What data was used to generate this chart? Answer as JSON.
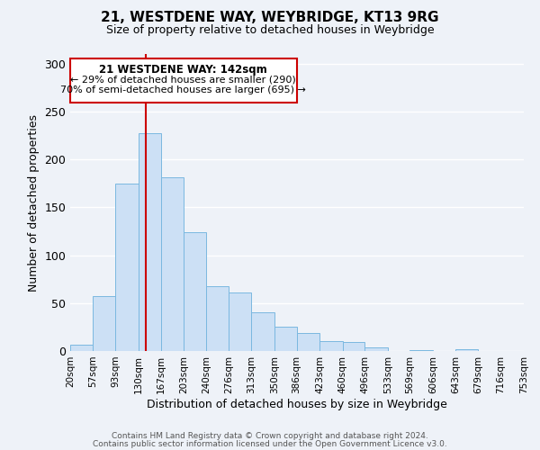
{
  "title": "21, WESTDENE WAY, WEYBRIDGE, KT13 9RG",
  "subtitle": "Size of property relative to detached houses in Weybridge",
  "bar_values": [
    7,
    57,
    175,
    227,
    181,
    124,
    68,
    61,
    40,
    25,
    19,
    10,
    9,
    4,
    0,
    1,
    0,
    2,
    0,
    0
  ],
  "bin_labels": [
    "20sqm",
    "57sqm",
    "93sqm",
    "130sqm",
    "167sqm",
    "203sqm",
    "240sqm",
    "276sqm",
    "313sqm",
    "350sqm",
    "386sqm",
    "423sqm",
    "460sqm",
    "496sqm",
    "533sqm",
    "569sqm",
    "606sqm",
    "643sqm",
    "679sqm",
    "716sqm",
    "753sqm"
  ],
  "bin_edges": [
    20,
    57,
    93,
    130,
    167,
    203,
    240,
    276,
    313,
    350,
    386,
    423,
    460,
    496,
    533,
    569,
    606,
    643,
    679,
    716,
    753
  ],
  "bar_color": "#cce0f5",
  "bar_edge_color": "#7ab8e0",
  "ylabel": "Number of detached properties",
  "xlabel": "Distribution of detached houses by size in Weybridge",
  "ylim": [
    0,
    310
  ],
  "xlim": [
    20,
    753
  ],
  "property_line_x": 142,
  "property_line_color": "#cc0000",
  "annotation_title": "21 WESTDENE WAY: 142sqm",
  "annotation_line1": "← 29% of detached houses are smaller (290)",
  "annotation_line2": "70% of semi-detached houses are larger (695) →",
  "footer_line1": "Contains HM Land Registry data © Crown copyright and database right 2024.",
  "footer_line2": "Contains public sector information licensed under the Open Government Licence v3.0.",
  "background_color": "#eef2f8",
  "grid_color": "#ffffff",
  "yticks": [
    0,
    50,
    100,
    150,
    200,
    250,
    300
  ]
}
